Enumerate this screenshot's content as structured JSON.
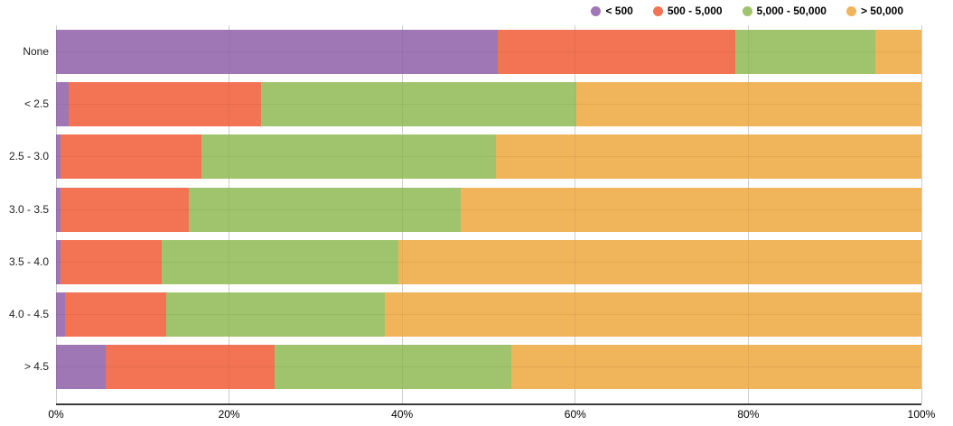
{
  "colors": {
    "purple": "#9f77b5",
    "red": "#f37355",
    "green": "#a0c46e",
    "orange": "#f0b45a",
    "axis": "#3a3a3a",
    "grid": "#d9d9d9",
    "background": "#ffffff"
  },
  "legend": [
    {
      "label": "< 500",
      "color": "#9f77b5"
    },
    {
      "label": "500 - 5,000",
      "color": "#f37355"
    },
    {
      "label": "5,000 - 50,000",
      "color": "#a0c46e"
    },
    {
      "label": "> 50,000",
      "color": "#f0b45a"
    }
  ],
  "chart_data": {
    "type": "bar",
    "stacked": true,
    "orientation": "horizontal",
    "unit": "percent",
    "title": "",
    "xlabel": "",
    "ylabel": "",
    "categories": [
      "None",
      "< 2.5",
      "2.5 - 3.0",
      "3.0 - 3.5",
      "3.5 - 4.0",
      "4.0 - 4.5",
      "> 4.5"
    ],
    "series": [
      {
        "name": "< 500",
        "color": "#9f77b5",
        "values": [
          51.0,
          1.5,
          0.5,
          0.5,
          0.5,
          1.0,
          5.7
        ]
      },
      {
        "name": "500 - 5,000",
        "color": "#f37355",
        "values": [
          27.5,
          22.2,
          16.3,
          14.8,
          11.7,
          11.7,
          19.6
        ]
      },
      {
        "name": "5,000 - 50,000",
        "color": "#a0c46e",
        "values": [
          16.2,
          36.4,
          34.0,
          31.5,
          27.4,
          25.3,
          27.3
        ]
      },
      {
        "name": "> 50,000",
        "color": "#f0b45a",
        "values": [
          5.3,
          39.9,
          49.2,
          53.2,
          60.4,
          62.0,
          47.4
        ]
      }
    ],
    "x_axis": {
      "range": [
        0,
        100
      ],
      "tick_step": 20,
      "ticks": [
        "0%",
        "20%",
        "40%",
        "60%",
        "80%",
        "100%"
      ],
      "grid": true
    },
    "legend_position": "top-right"
  }
}
